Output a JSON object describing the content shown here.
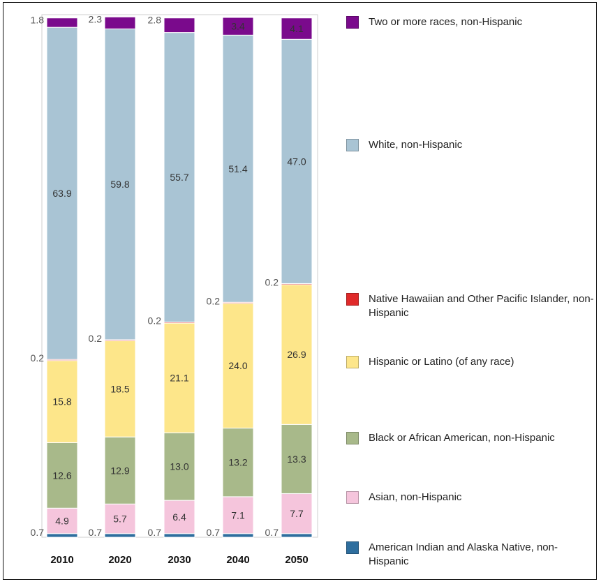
{
  "chart_data": {
    "type": "bar",
    "stacked": true,
    "categories": [
      "2010",
      "2020",
      "2030",
      "2040",
      "2050"
    ],
    "series": [
      {
        "name": "American Indian and Alaska Native, non-Hispanic",
        "color": "#2e6e9e",
        "values": [
          0.7,
          0.7,
          0.7,
          0.7,
          0.7
        ]
      },
      {
        "name": "Asian, non-Hispanic",
        "color": "#f5c5dc",
        "values": [
          4.9,
          5.7,
          6.4,
          7.1,
          7.7
        ]
      },
      {
        "name": "Black or African American, non-Hispanic",
        "color": "#a8b98a",
        "values": [
          12.6,
          12.9,
          13.0,
          13.2,
          13.3
        ]
      },
      {
        "name": "Hispanic or Latino (of any race)",
        "color": "#fde68a",
        "values": [
          15.8,
          18.5,
          21.1,
          24.0,
          26.9
        ]
      },
      {
        "name": "Native Hawaiian and Other Pacific Islander, non-Hispanic",
        "color": "#e02a2a",
        "values": [
          0.2,
          0.2,
          0.2,
          0.2,
          0.2
        ]
      },
      {
        "name": "White, non-Hispanic",
        "color": "#a9c4d4",
        "values": [
          63.9,
          59.8,
          55.7,
          51.4,
          47.0
        ]
      },
      {
        "name": "Two or more races, non-Hispanic",
        "color": "#7a0a8c",
        "values": [
          1.8,
          2.3,
          2.8,
          3.4,
          4.1
        ]
      }
    ],
    "title": "",
    "xlabel": "",
    "ylabel": "",
    "ylim": [
      0,
      100
    ],
    "grid": false,
    "legend_position": "right"
  }
}
